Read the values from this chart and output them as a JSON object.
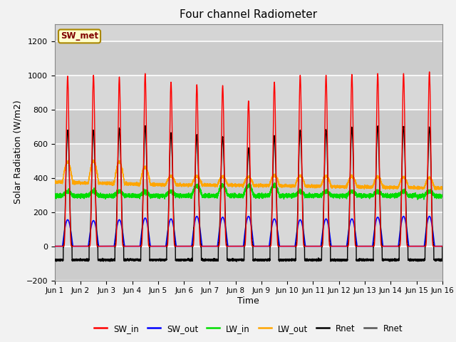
{
  "title": "Four channel Radiometer",
  "xlabel": "Time",
  "ylabel": "Solar Radiation (W/m2)",
  "ylim": [
    -200,
    1300
  ],
  "yticks": [
    -200,
    0,
    200,
    400,
    600,
    800,
    1000,
    1200
  ],
  "background_color": "#f0f0f0",
  "plot_bg_color": "#d8d8d8",
  "grid_color": "#e8e8e8",
  "num_days": 15,
  "points_per_day": 480,
  "colors": {
    "SW_in": "#ff0000",
    "SW_out": "#0000ff",
    "LW_in": "#00dd00",
    "LW_out": "#ffa500",
    "Rnet": "#000000",
    "Rnet2": "#555555"
  },
  "legend_labels": [
    "SW_in",
    "SW_out",
    "LW_in",
    "LW_out",
    "Rnet",
    "Rnet"
  ],
  "annotation_text": "SW_met",
  "xtick_labels": [
    "Jun 1",
    "Jun 2",
    "Jun 3",
    "Jun 4",
    "Jun 5",
    "Jun 6",
    "Jun 7",
    "Jun 8",
    "Jun 9",
    "Jun 10",
    "Jun 11",
    "Jun 12",
    "Jun 13",
    "Jun 14",
    "Jun 15",
    "Jun 16"
  ],
  "xtick_positions": [
    0,
    1,
    2,
    3,
    4,
    5,
    6,
    7,
    8,
    9,
    10,
    11,
    12,
    13,
    14,
    15
  ]
}
